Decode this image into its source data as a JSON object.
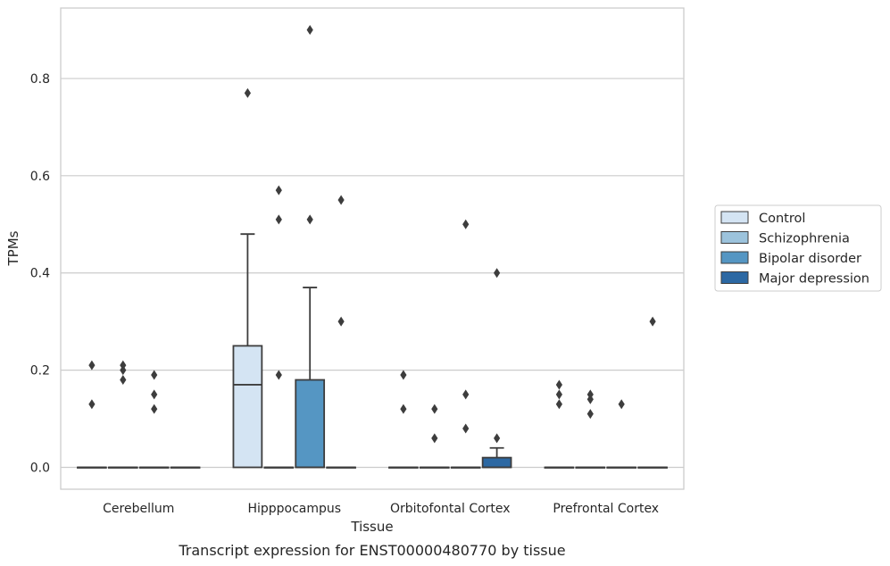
{
  "chart_data": {
    "type": "box",
    "title": "",
    "caption": "Transcript expression for ENST00000480770 by tissue",
    "xlabel": "Tissue",
    "ylabel": "TPMs",
    "ylim": [
      -0.045,
      0.945
    ],
    "yticks": [
      "0.0",
      "0.2",
      "0.4",
      "0.6",
      "0.8"
    ],
    "yticks_values": [
      0.0,
      0.2,
      0.4,
      0.6,
      0.8
    ],
    "grid": true,
    "legend_position": "right",
    "categories": [
      "Cerebellum",
      "Hipppocampus",
      "Orbitofontal Cortex",
      "Prefrontal Cortex"
    ],
    "series": [
      {
        "name": "Control",
        "color": "#d4e4f3",
        "boxes": [
          {
            "q1": 0,
            "median": 0,
            "q3": 0,
            "whisker_low": 0,
            "whisker_high": 0,
            "outliers": [
              0.13,
              0.21
            ]
          },
          {
            "q1": 0,
            "median": 0.17,
            "q3": 0.25,
            "whisker_low": 0,
            "whisker_high": 0.48,
            "outliers": [
              0.77
            ]
          },
          {
            "q1": 0,
            "median": 0,
            "q3": 0,
            "whisker_low": 0,
            "whisker_high": 0,
            "outliers": [
              0.12,
              0.19
            ]
          },
          {
            "q1": 0,
            "median": 0,
            "q3": 0,
            "whisker_low": 0,
            "whisker_high": 0,
            "outliers": [
              0.13,
              0.15,
              0.17
            ]
          }
        ]
      },
      {
        "name": "Schizophrenia",
        "color": "#9cc3dc",
        "boxes": [
          {
            "q1": 0,
            "median": 0,
            "q3": 0,
            "whisker_low": 0,
            "whisker_high": 0,
            "outliers": [
              0.18,
              0.21,
              0.2
            ]
          },
          {
            "q1": 0,
            "median": 0,
            "q3": 0,
            "whisker_low": 0,
            "whisker_high": 0,
            "outliers": [
              0.19,
              0.51,
              0.57
            ]
          },
          {
            "q1": 0,
            "median": 0,
            "q3": 0,
            "whisker_low": 0,
            "whisker_high": 0,
            "outliers": [
              0.06,
              0.12
            ]
          },
          {
            "q1": 0,
            "median": 0,
            "q3": 0,
            "whisker_low": 0,
            "whisker_high": 0,
            "outliers": [
              0.11,
              0.14,
              0.15
            ]
          }
        ]
      },
      {
        "name": "Bipolar disorder",
        "color": "#5596c3",
        "boxes": [
          {
            "q1": 0,
            "median": 0,
            "q3": 0,
            "whisker_low": 0,
            "whisker_high": 0,
            "outliers": [
              0.12,
              0.15,
              0.19
            ]
          },
          {
            "q1": 0,
            "median": 0,
            "q3": 0.18,
            "whisker_low": 0,
            "whisker_high": 0.37,
            "outliers": [
              0.51,
              0.9
            ]
          },
          {
            "q1": 0,
            "median": 0,
            "q3": 0,
            "whisker_low": 0,
            "whisker_high": 0,
            "outliers": [
              0.08,
              0.15,
              0.5
            ]
          },
          {
            "q1": 0,
            "median": 0,
            "q3": 0,
            "whisker_low": 0,
            "whisker_high": 0,
            "outliers": [
              0.13
            ]
          }
        ]
      },
      {
        "name": "Major depression",
        "color": "#2c68a3",
        "boxes": [
          {
            "q1": 0,
            "median": 0,
            "q3": 0,
            "whisker_low": 0,
            "whisker_high": 0,
            "outliers": []
          },
          {
            "q1": 0,
            "median": 0,
            "q3": 0,
            "whisker_low": 0,
            "whisker_high": 0,
            "outliers": [
              0.3,
              0.55
            ]
          },
          {
            "q1": 0,
            "median": 0,
            "q3": 0.02,
            "whisker_low": 0,
            "whisker_high": 0.04,
            "outliers": [
              0.06,
              0.4
            ]
          },
          {
            "q1": 0,
            "median": 0,
            "q3": 0,
            "whisker_low": 0,
            "whisker_high": 0,
            "outliers": [
              0.3
            ]
          }
        ]
      }
    ]
  }
}
